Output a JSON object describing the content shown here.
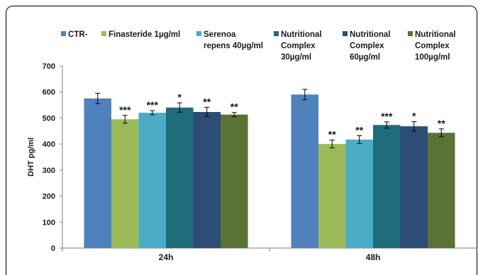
{
  "chart_data": {
    "type": "bar",
    "title": "",
    "xlabel": "",
    "ylabel": "DHT pg/ml",
    "ylim": [
      0,
      700
    ],
    "yticks": [
      0,
      100,
      200,
      300,
      400,
      500,
      600,
      700
    ],
    "grid": false,
    "legend_position": "top",
    "categories": [
      "24h",
      "48h"
    ],
    "series": [
      {
        "name": "CTR-",
        "legend_lines": [
          "CTR-"
        ],
        "color": "#4F81BD",
        "values": [
          575,
          590
        ],
        "errors": [
          20,
          20
        ],
        "sig": [
          "",
          ""
        ]
      },
      {
        "name": "Finasteride 1µg/ml",
        "legend_lines": [
          "Finasteride 1µg/ml"
        ],
        "color": "#9BBB59",
        "values": [
          495,
          400
        ],
        "errors": [
          15,
          15
        ],
        "sig": [
          "***",
          "**"
        ]
      },
      {
        "name": "Serenoa repens 40µg/ml",
        "legend_lines": [
          "Serenoa",
          "repens 40µg/ml"
        ],
        "color": "#4BACC6",
        "values": [
          520,
          417
        ],
        "errors": [
          8,
          15
        ],
        "sig": [
          "***",
          "**"
        ]
      },
      {
        "name": "Nutritional Complex 30µg/ml",
        "legend_lines": [
          "Nutritional",
          "Complex",
          "30µg/ml"
        ],
        "color": "#1F6C7A",
        "values": [
          540,
          473
        ],
        "errors": [
          18,
          12
        ],
        "sig": [
          "*",
          "***"
        ]
      },
      {
        "name": "Nutritional Complex 60µg/ml",
        "legend_lines": [
          "Nutritional",
          "Complex",
          "60µg/ml"
        ],
        "color": "#2C4D75",
        "values": [
          523,
          468
        ],
        "errors": [
          18,
          18
        ],
        "sig": [
          "**",
          "*"
        ]
      },
      {
        "name": "Nutritional Complex 100µg/ml",
        "legend_lines": [
          "Nutritional",
          "Complex",
          "100µg/ml"
        ],
        "color": "#5A7335",
        "values": [
          513,
          443
        ],
        "errors": [
          8,
          15
        ],
        "sig": [
          "**",
          "**"
        ]
      }
    ]
  }
}
